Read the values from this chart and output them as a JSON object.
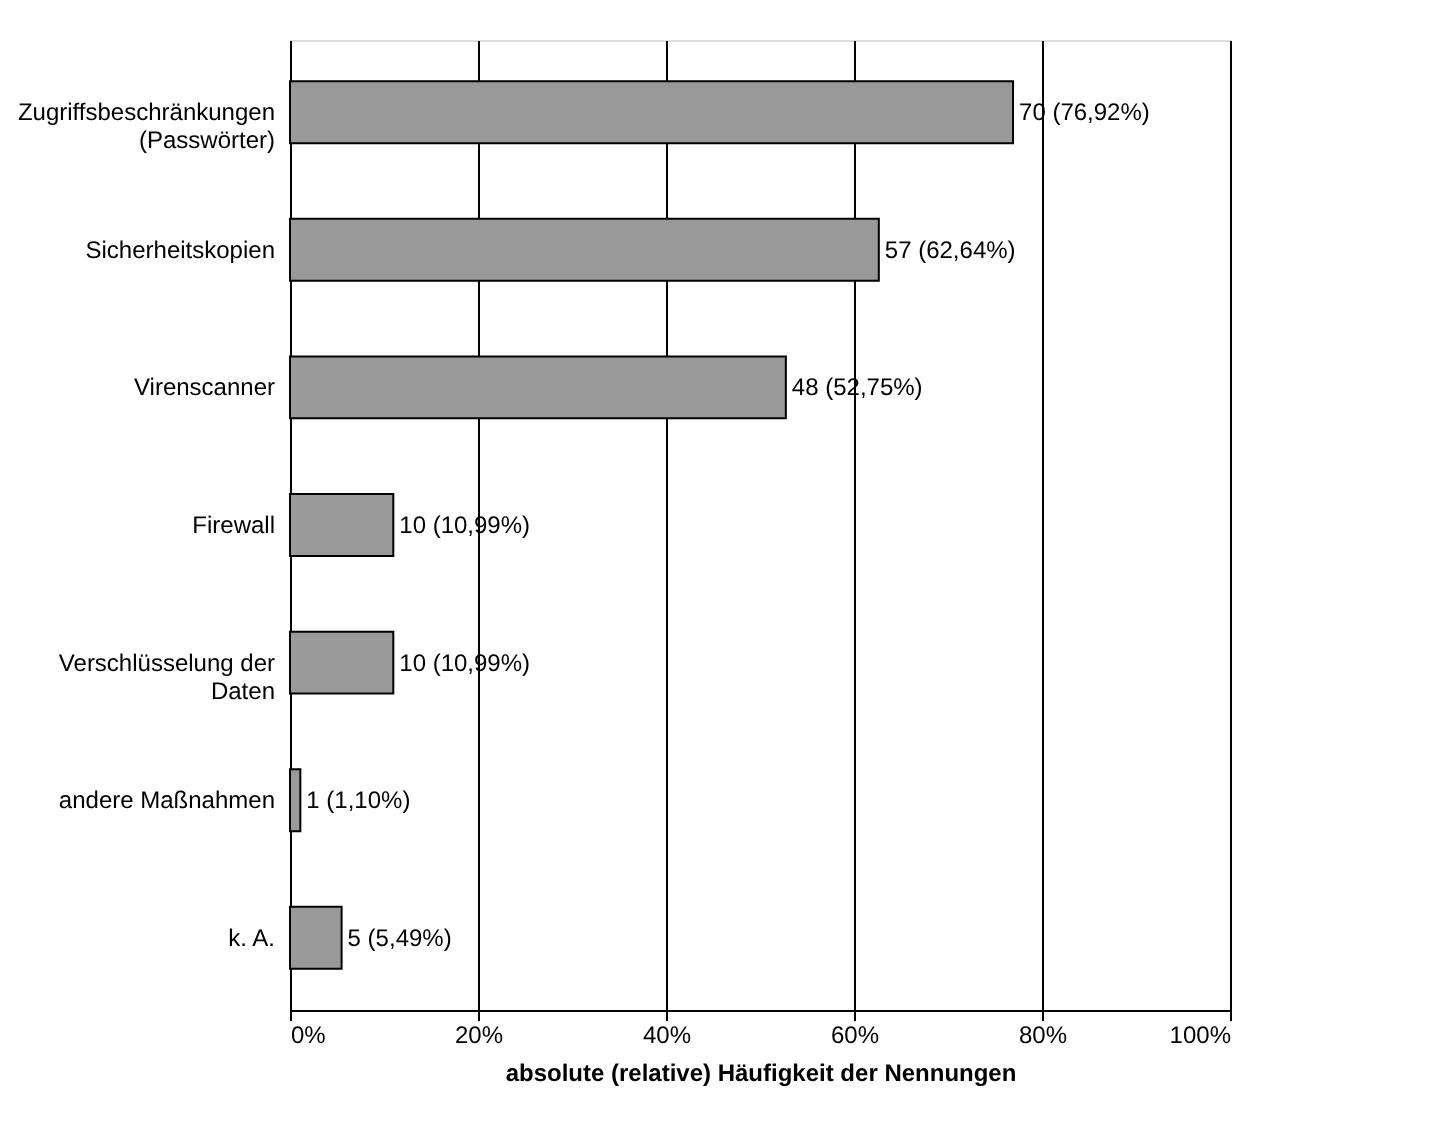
{
  "chart_data": {
    "type": "bar",
    "orientation": "horizontal",
    "xlabel": "absolute (relative) Häufigkeit der Nennungen",
    "categories": [
      "Zugriffsbeschränkungen\n(Passwörter)",
      "Sicherheitskopien",
      "Virenscanner",
      "Firewall",
      "Verschlüsselung der\nDaten",
      "andere Maßnahmen",
      "k. A."
    ],
    "values": [
      76.92,
      62.64,
      52.75,
      10.99,
      10.99,
      1.1,
      5.49
    ],
    "value_labels": [
      "70 (76,92%)",
      "57 (62,64%)",
      "48 (52,75%)",
      "10 (10,99%)",
      "10 (10,99%)",
      "1 (1,10%)",
      "5 (5,49%)"
    ],
    "color": "#999999",
    "xlim": [
      0,
      100
    ],
    "xticks": [
      {
        "value": 0,
        "label": "0%"
      },
      {
        "value": 20,
        "label": "20%"
      },
      {
        "value": 40,
        "label": "40%"
      },
      {
        "value": 60,
        "label": "60%"
      },
      {
        "value": 80,
        "label": "80%"
      },
      {
        "value": 100,
        "label": "100%"
      }
    ],
    "grid": "x"
  }
}
